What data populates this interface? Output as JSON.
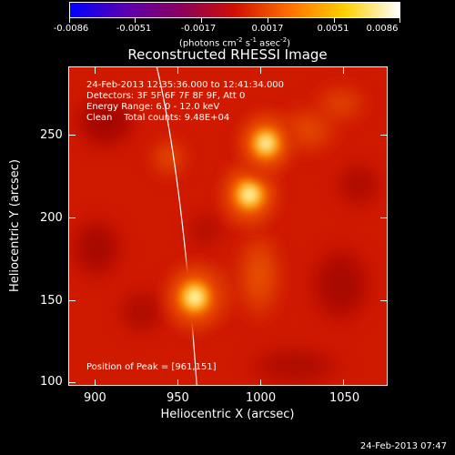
{
  "colorbar": {
    "tick_labels": [
      "-0.0086",
      "-0.0051",
      "-0.0017",
      "0.0017",
      "0.0051",
      "0.0086"
    ],
    "units_prefix": "(photons cm",
    "units_exp1": "-2",
    "units_mid": " s",
    "units_exp2": "-1",
    "units_mid2": " asec",
    "units_exp3": "-2",
    "units_suffix": ")",
    "gradient_colors": [
      "#0000ff",
      "#5a00b0",
      "#8a0060",
      "#d01000",
      "#ff7000",
      "#ffd000",
      "#ffffff"
    ]
  },
  "plot": {
    "title": "Reconstructed RHESSI Image",
    "xlabel": "Heliocentric X (arcsec)",
    "ylabel": "Heliocentric Y (arcsec)",
    "x_tick_labels": [
      "900",
      "950",
      "1000",
      "1050"
    ],
    "y_tick_labels": [
      "250",
      "200",
      "150",
      "100"
    ],
    "info": {
      "line1": "24-Feb-2013 12:35:36.000 to 12:41:34.000",
      "line2": "Detectors: 3F 5F 6F 7F 8F 9F, Att 0",
      "line3": "Energy Range: 6.0 - 12.0 keV",
      "line4": "Clean    Total counts: 9.48E+04"
    },
    "peak_text": "Position of Peak = [961,151]"
  },
  "chart_data": {
    "type": "heatmap",
    "title": "Reconstructed RHESSI Image",
    "xlabel": "Heliocentric X (arcsec)",
    "ylabel": "Heliocentric Y (arcsec)",
    "xlim": [
      885,
      1077
    ],
    "ylim": [
      98,
      290
    ],
    "x_ticks": [
      900,
      950,
      1000,
      1050
    ],
    "y_ticks": [
      100,
      150,
      200,
      250
    ],
    "colorbar_range": [
      -0.0086,
      0.0086
    ],
    "sources": [
      {
        "x": 961,
        "y": 151,
        "relative_intensity": 1.0
      },
      {
        "x": 994,
        "y": 213,
        "relative_intensity": 0.9
      },
      {
        "x": 1004,
        "y": 244,
        "relative_intensity": 0.75
      }
    ]
  },
  "footer": {
    "date": "24-Feb-2013 07:47"
  }
}
